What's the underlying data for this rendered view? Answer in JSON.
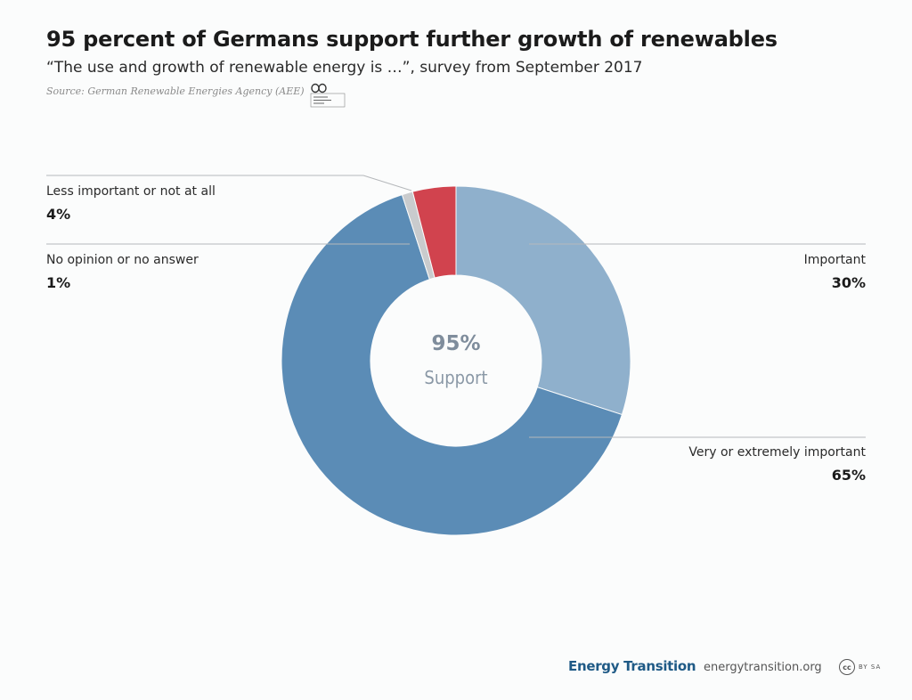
{
  "header": {
    "title": "95 percent of Germans support further growth of renewables",
    "subtitle": "“The use and growth of renewable energy is …”, survey from September 2017",
    "source": "Source: German Renewable Energies Agency (AEE)",
    "source_logo_icon": "aee-infinity-logo"
  },
  "center": {
    "value": "95%",
    "label": "Support"
  },
  "labels": {
    "less_important": {
      "label": "Less important or not at all",
      "value": "4%"
    },
    "no_opinion": {
      "label": "No opinion or no answer",
      "value": "1%"
    },
    "important": {
      "label": "Important",
      "value": "30%"
    },
    "very_important": {
      "label": "Very or extremely important",
      "value": "65%"
    }
  },
  "chart_data": {
    "type": "pie",
    "donut": true,
    "title": "95 percent of Germans support further growth of renewables",
    "slices": [
      {
        "label": "Important",
        "value": 30,
        "color": "#8fb0cc"
      },
      {
        "label": "Very or extremely important",
        "value": 65,
        "color": "#5b8cb6"
      },
      {
        "label": "No opinion or no answer",
        "value": 1,
        "color": "#c9cbcd"
      },
      {
        "label": "Less important or not at all",
        "value": 4,
        "color": "#d1434e"
      }
    ],
    "start_angle_deg": 0,
    "direction": "clockwise",
    "center_text": "95% Support"
  },
  "footer": {
    "brand": "Energy Transition",
    "url": "energytransition.org",
    "license_icon": "cc-by-sa-icon",
    "license_short": "cc",
    "license_text": "BY SA"
  },
  "colors": {
    "leader_line": "#b5b8bb",
    "brand": "#1f5a86"
  }
}
